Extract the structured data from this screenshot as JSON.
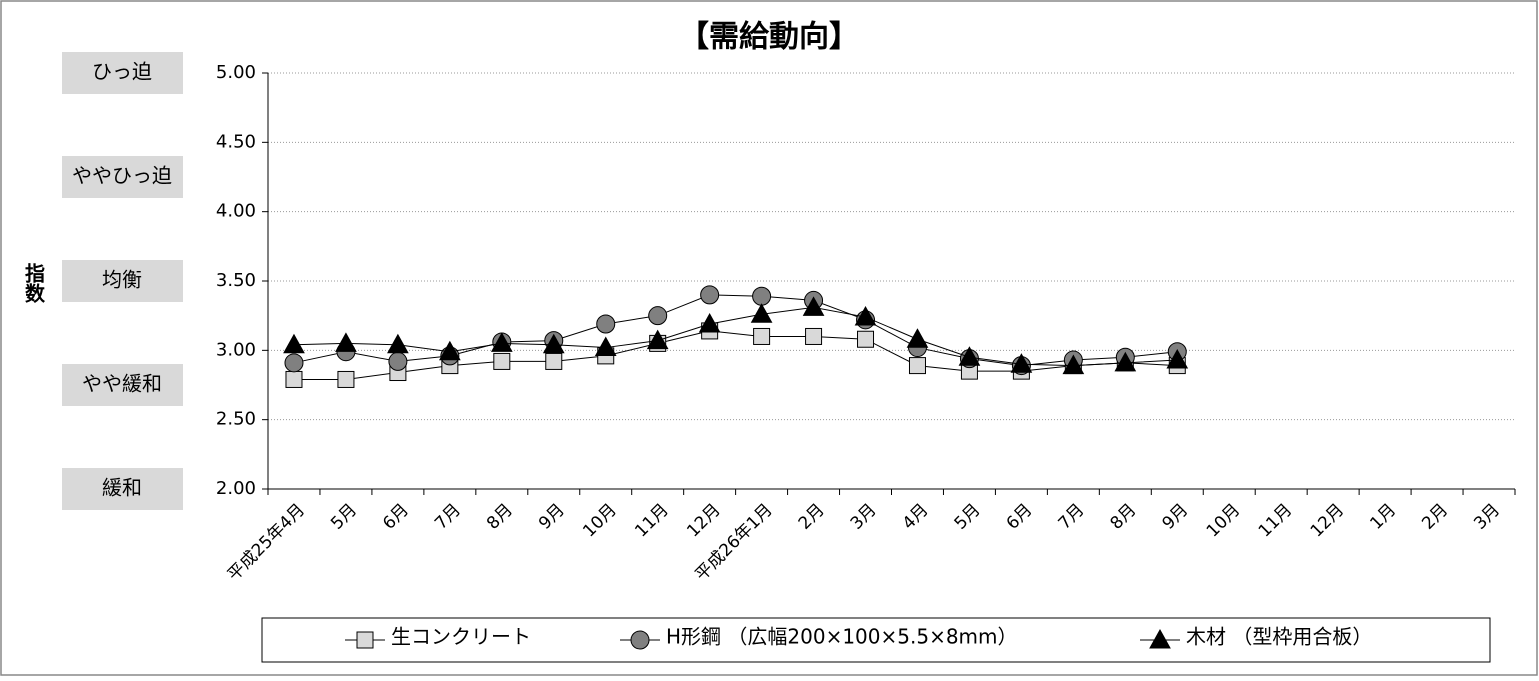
{
  "chart_data": {
    "type": "line",
    "title": "【需給動向】",
    "y_label": "指数",
    "categories": [
      "平成25年4月",
      "5月",
      "6月",
      "7月",
      "8月",
      "9月",
      "10月",
      "11月",
      "12月",
      "平成26年1月",
      "2月",
      "3月",
      "4月",
      "5月",
      "6月",
      "7月",
      "8月",
      "9月",
      "10月",
      "11月",
      "12月",
      "1月",
      "2月",
      "3月"
    ],
    "series": [
      {
        "name": "生コンクリート",
        "marker": "square",
        "color": "#d9d9d9",
        "values": [
          2.79,
          2.79,
          2.84,
          2.89,
          2.92,
          2.92,
          2.96,
          3.05,
          3.14,
          3.1,
          3.1,
          3.08,
          2.89,
          2.85,
          2.85,
          2.89,
          2.91,
          2.89,
          null,
          null,
          null,
          null,
          null,
          null
        ]
      },
      {
        "name": "H形鋼 （広幅200×100×5.5×8mm）",
        "marker": "circle",
        "color": "#808080",
        "values": [
          2.91,
          2.99,
          2.92,
          2.96,
          3.06,
          3.07,
          3.19,
          3.25,
          3.4,
          3.39,
          3.36,
          3.22,
          3.02,
          2.94,
          2.89,
          2.93,
          2.95,
          2.99,
          null,
          null,
          null,
          null,
          null,
          null
        ]
      },
      {
        "name": "木材 （型枠用合板）",
        "marker": "triangle",
        "color": "#000000",
        "values": [
          3.04,
          3.05,
          3.04,
          2.99,
          3.05,
          3.04,
          3.02,
          3.07,
          3.19,
          3.26,
          3.31,
          3.24,
          3.08,
          2.95,
          2.9,
          2.89,
          2.91,
          2.93,
          null,
          null,
          null,
          null,
          null,
          null
        ]
      }
    ],
    "ylim": [
      2,
      5
    ],
    "yticks": [
      {
        "value": 2,
        "label": "2.00"
      },
      {
        "value": 2.5,
        "label": "2.50"
      },
      {
        "value": 3,
        "label": "3.00"
      },
      {
        "value": 3.5,
        "label": "3.50"
      },
      {
        "value": 4,
        "label": "4.00"
      },
      {
        "value": 4.5,
        "label": "4.50"
      },
      {
        "value": 5,
        "label": "5.00"
      }
    ],
    "level_labels": [
      {
        "value": 5,
        "label": "ひっ迫"
      },
      {
        "value": 4.25,
        "label": "ややひっ迫"
      },
      {
        "value": 3.5,
        "label": "均衡"
      },
      {
        "value": 2.75,
        "label": "やや緩和"
      },
      {
        "value": 2,
        "label": "緩和"
      }
    ],
    "grid": true,
    "legend": "bottom"
  }
}
